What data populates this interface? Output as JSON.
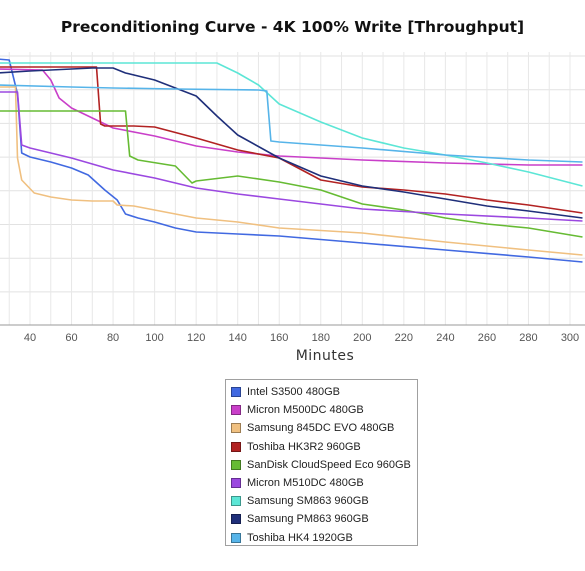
{
  "chart_data": {
    "type": "line",
    "title": "Preconditioning Curve - 4K 100% Write [Throughput]",
    "xlabel": "Minutes",
    "ylabel": "",
    "xlim": [
      24,
      306
    ],
    "x_ticks": [
      40,
      60,
      80,
      100,
      120,
      140,
      160,
      180,
      200,
      220,
      240,
      260,
      280,
      300
    ],
    "grid": true,
    "legend_position": "bottom-center",
    "series": [
      {
        "name": "Intel S3500 480GB",
        "color": "#4169e1",
        "points": [
          [
            24,
            59
          ],
          [
            30,
            60
          ],
          [
            34,
            94
          ],
          [
            36,
            153
          ],
          [
            40,
            157
          ],
          [
            50,
            162
          ],
          [
            60,
            168
          ],
          [
            68,
            175
          ],
          [
            76,
            190
          ],
          [
            82,
            200
          ],
          [
            86,
            214
          ],
          [
            92,
            218
          ],
          [
            100,
            222
          ],
          [
            110,
            228
          ],
          [
            120,
            232
          ],
          [
            140,
            234
          ],
          [
            160,
            236
          ],
          [
            200,
            243
          ],
          [
            240,
            250
          ],
          [
            280,
            257
          ],
          [
            306,
            262
          ]
        ]
      },
      {
        "name": "Micron M500DC 480GB",
        "color": "#c93fc9",
        "points": [
          [
            24,
            69
          ],
          [
            46,
            70
          ],
          [
            50,
            80
          ],
          [
            54,
            98
          ],
          [
            60,
            108
          ],
          [
            80,
            128
          ],
          [
            100,
            136
          ],
          [
            120,
            146
          ],
          [
            140,
            152
          ],
          [
            160,
            156
          ],
          [
            200,
            160
          ],
          [
            240,
            163
          ],
          [
            280,
            165
          ],
          [
            306,
            165
          ]
        ]
      },
      {
        "name": "Samsung 845DC EVO 480GB",
        "color": "#f0c080",
        "points": [
          [
            24,
            87
          ],
          [
            33,
            87
          ],
          [
            34,
            158
          ],
          [
            36,
            180
          ],
          [
            42,
            193
          ],
          [
            50,
            197
          ],
          [
            60,
            200
          ],
          [
            70,
            201
          ],
          [
            80,
            201
          ],
          [
            82,
            205
          ],
          [
            90,
            206
          ],
          [
            100,
            210
          ],
          [
            120,
            218
          ],
          [
            140,
            222
          ],
          [
            160,
            228
          ],
          [
            200,
            233
          ],
          [
            240,
            242
          ],
          [
            280,
            250
          ],
          [
            306,
            255
          ]
        ]
      },
      {
        "name": "Toshiba HK3R2 960GB",
        "color": "#b22222",
        "points": [
          [
            24,
            67
          ],
          [
            72,
            67
          ],
          [
            74,
            124
          ],
          [
            76,
            126
          ],
          [
            90,
            126
          ],
          [
            100,
            127
          ],
          [
            120,
            138
          ],
          [
            140,
            150
          ],
          [
            160,
            158
          ],
          [
            180,
            180
          ],
          [
            200,
            187
          ],
          [
            220,
            190
          ],
          [
            240,
            194
          ],
          [
            260,
            200
          ],
          [
            280,
            205
          ],
          [
            306,
            213
          ]
        ]
      },
      {
        "name": "SanDisk CloudSpeed Eco 960GB",
        "color": "#66bb33",
        "points": [
          [
            24,
            111
          ],
          [
            86,
            111
          ],
          [
            88,
            156
          ],
          [
            92,
            160
          ],
          [
            110,
            166
          ],
          [
            118,
            183
          ],
          [
            120,
            181
          ],
          [
            140,
            176
          ],
          [
            160,
            182
          ],
          [
            180,
            190
          ],
          [
            200,
            204
          ],
          [
            220,
            210
          ],
          [
            240,
            218
          ],
          [
            260,
            224
          ],
          [
            280,
            228
          ],
          [
            306,
            237
          ]
        ]
      },
      {
        "name": "Micron M510DC 480GB",
        "color": "#9b48e0",
        "points": [
          [
            24,
            92
          ],
          [
            34,
            92
          ],
          [
            36,
            145
          ],
          [
            40,
            148
          ],
          [
            60,
            158
          ],
          [
            80,
            170
          ],
          [
            100,
            178
          ],
          [
            120,
            188
          ],
          [
            140,
            194
          ],
          [
            160,
            199
          ],
          [
            180,
            204
          ],
          [
            200,
            209
          ],
          [
            240,
            214
          ],
          [
            280,
            218
          ],
          [
            306,
            221
          ]
        ]
      },
      {
        "name": "Samsung SM863 960GB",
        "color": "#5ce6d6",
        "points": [
          [
            24,
            63
          ],
          [
            130,
            63
          ],
          [
            140,
            73
          ],
          [
            150,
            85
          ],
          [
            160,
            104
          ],
          [
            180,
            122
          ],
          [
            200,
            138
          ],
          [
            220,
            148
          ],
          [
            240,
            155
          ],
          [
            260,
            163
          ],
          [
            280,
            172
          ],
          [
            306,
            186
          ]
        ]
      },
      {
        "name": "Samsung PM863 960GB",
        "color": "#1f2f7a",
        "points": [
          [
            24,
            73
          ],
          [
            40,
            71
          ],
          [
            70,
            68
          ],
          [
            80,
            68
          ],
          [
            86,
            73
          ],
          [
            100,
            80
          ],
          [
            120,
            96
          ],
          [
            130,
            116
          ],
          [
            140,
            135
          ],
          [
            160,
            158
          ],
          [
            180,
            176
          ],
          [
            200,
            186
          ],
          [
            220,
            192
          ],
          [
            240,
            199
          ],
          [
            260,
            206
          ],
          [
            280,
            211
          ],
          [
            306,
            218
          ]
        ]
      },
      {
        "name": "Toshiba HK4 1920GB",
        "color": "#56b4e9",
        "points": [
          [
            24,
            85
          ],
          [
            60,
            87
          ],
          [
            80,
            88
          ],
          [
            110,
            89
          ],
          [
            150,
            90
          ],
          [
            154,
            91
          ],
          [
            156,
            141
          ],
          [
            160,
            142
          ],
          [
            200,
            148
          ],
          [
            240,
            155
          ],
          [
            280,
            160
          ],
          [
            306,
            162
          ]
        ]
      }
    ]
  }
}
